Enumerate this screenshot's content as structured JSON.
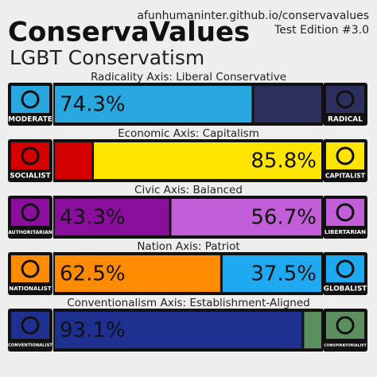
{
  "header": {
    "title": "ConservaValues",
    "subtitle": "LGBT Conservatism",
    "url": "afunhumaninter.github.io/conservavalues",
    "edition": "Test Edition #3.0"
  },
  "axes": [
    {
      "title": "Radicality Axis: Liberal Conservative",
      "left": {
        "name": "MODERATE",
        "color": "#29a8e0"
      },
      "right": {
        "name": "RADICAL",
        "color": "#2c2e5c"
      },
      "segments": [
        {
          "value": 74.3,
          "label": "74.3%",
          "color": "#29a8e0"
        },
        {
          "value": 25.7,
          "color": "#2c2e5c"
        }
      ]
    },
    {
      "title": "Economic Axis: Capitalism",
      "left": {
        "name": "SOCIALIST",
        "color": "#d40000"
      },
      "right": {
        "name": "CAPITALIST",
        "color": "#ffe500"
      },
      "segments": [
        {
          "value": 14.2,
          "color": "#d40000"
        },
        {
          "value": 85.8,
          "label": "85.8%",
          "color": "#ffe500"
        }
      ]
    },
    {
      "title": "Civic Axis: Balanced",
      "left": {
        "name": "AUTHORITARIAN",
        "color": "#8a0f9c"
      },
      "right": {
        "name": "LIBERTARIAN",
        "color": "#c25ed8"
      },
      "segments": [
        {
          "value": 43.3,
          "label": "43.3%",
          "color": "#8a0f9c"
        },
        {
          "value": 56.7,
          "label": "56.7%",
          "color": "#c25ed8"
        }
      ]
    },
    {
      "title": "Nation Axis: Patriot",
      "left": {
        "name": "NATIONALIST",
        "color": "#ff8c00"
      },
      "right": {
        "name": "GLOBALIST",
        "color": "#1ea9f0"
      },
      "segments": [
        {
          "value": 62.5,
          "label": "62.5%",
          "color": "#ff8c00"
        },
        {
          "value": 37.5,
          "label": "37.5%",
          "color": "#1ea9f0"
        }
      ]
    },
    {
      "title": "Conventionalism Axis: Establishment-Aligned",
      "left": {
        "name": "CONVENTIONALIST",
        "color": "#1f3190"
      },
      "right": {
        "name": "CONSPIRATORIALIST",
        "color": "#5b8f5d"
      },
      "segments": [
        {
          "value": 93.1,
          "label": "93.1%",
          "color": "#1f3190"
        },
        {
          "value": 6.9,
          "color": "#5b8f5d"
        }
      ]
    }
  ]
}
